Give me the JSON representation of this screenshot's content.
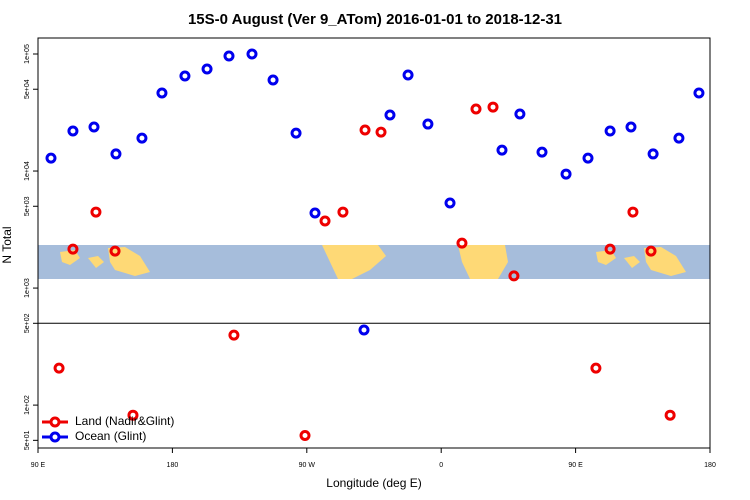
{
  "chart_data": {
    "type": "scatter",
    "title": "15S-0 August (Ver 9_ATom)   2016-01-01 to 2018-12-31",
    "x_label": "Longitude (deg E)",
    "y_label": "N Total",
    "log_y": true,
    "xlim": [
      90,
      540
    ],
    "ylim": [
      43,
      137000
    ],
    "xticks": [
      {
        "value": 90,
        "label": "90 E"
      },
      180,
      {
        "value": 270,
        "label": "90 W"
      },
      {
        "value": 360,
        "label": "0"
      },
      {
        "value": 450,
        "label": "90 E"
      },
      {
        "value": 540,
        "label": "180"
      }
    ],
    "yticks": [
      {
        "value": 50,
        "label": "5e+01"
      },
      {
        "value": 100,
        "label": "1e+02"
      },
      {
        "value": 500,
        "label": "5e+02"
      },
      {
        "value": 1000,
        "label": "1e+03"
      },
      {
        "value": 5000,
        "label": "5e+03"
      },
      {
        "value": 10000,
        "label": "1e+04"
      },
      {
        "value": 50000,
        "label": "5e+04"
      },
      {
        "value": 100000,
        "label": "1e+05"
      }
    ],
    "hline": 500,
    "legend": "bottom-left",
    "series": [
      {
        "name": "Land (Nadir&Glint)",
        "color": "#ee0000",
        "x": [
          104.1,
          113.4,
          128.8,
          141.6,
          153.6,
          221.2,
          268.8,
          282.2,
          294.2,
          309.0,
          319.7,
          373.9,
          383.3,
          394.7,
          408.7,
          463.6,
          473.1,
          488.4,
          500.5,
          513.3
        ],
        "values": [
          207,
          2150,
          4460,
          2070,
          82,
          396,
          55,
          3740,
          4460,
          22400,
          21500,
          2420,
          33900,
          35200,
          1270,
          207,
          2150,
          4460,
          2070,
          82
        ]
      },
      {
        "name": "Ocean (Glint)",
        "color": "#0000ee",
        "x": [
          98.7,
          113.4,
          127.5,
          142.2,
          159.6,
          173.0,
          188.4,
          203.2,
          217.9,
          233.3,
          247.4,
          262.8,
          275.5,
          308.3,
          325.7,
          337.8,
          351.1,
          365.9,
          400.7,
          412.7,
          427.5,
          443.6,
          458.3,
          473.1,
          487.1,
          501.9,
          519.2,
          532.6
        ],
        "values": [
          12900,
          22000,
          23800,
          14000,
          19100,
          46400,
          64900,
          74400,
          96100,
          100000,
          60000,
          21100,
          4380,
          438,
          30100,
          66200,
          25200,
          5330,
          15100,
          30700,
          14500,
          9420,
          12900,
          22000,
          23800,
          14000,
          19100,
          46400
        ]
      }
    ]
  }
}
